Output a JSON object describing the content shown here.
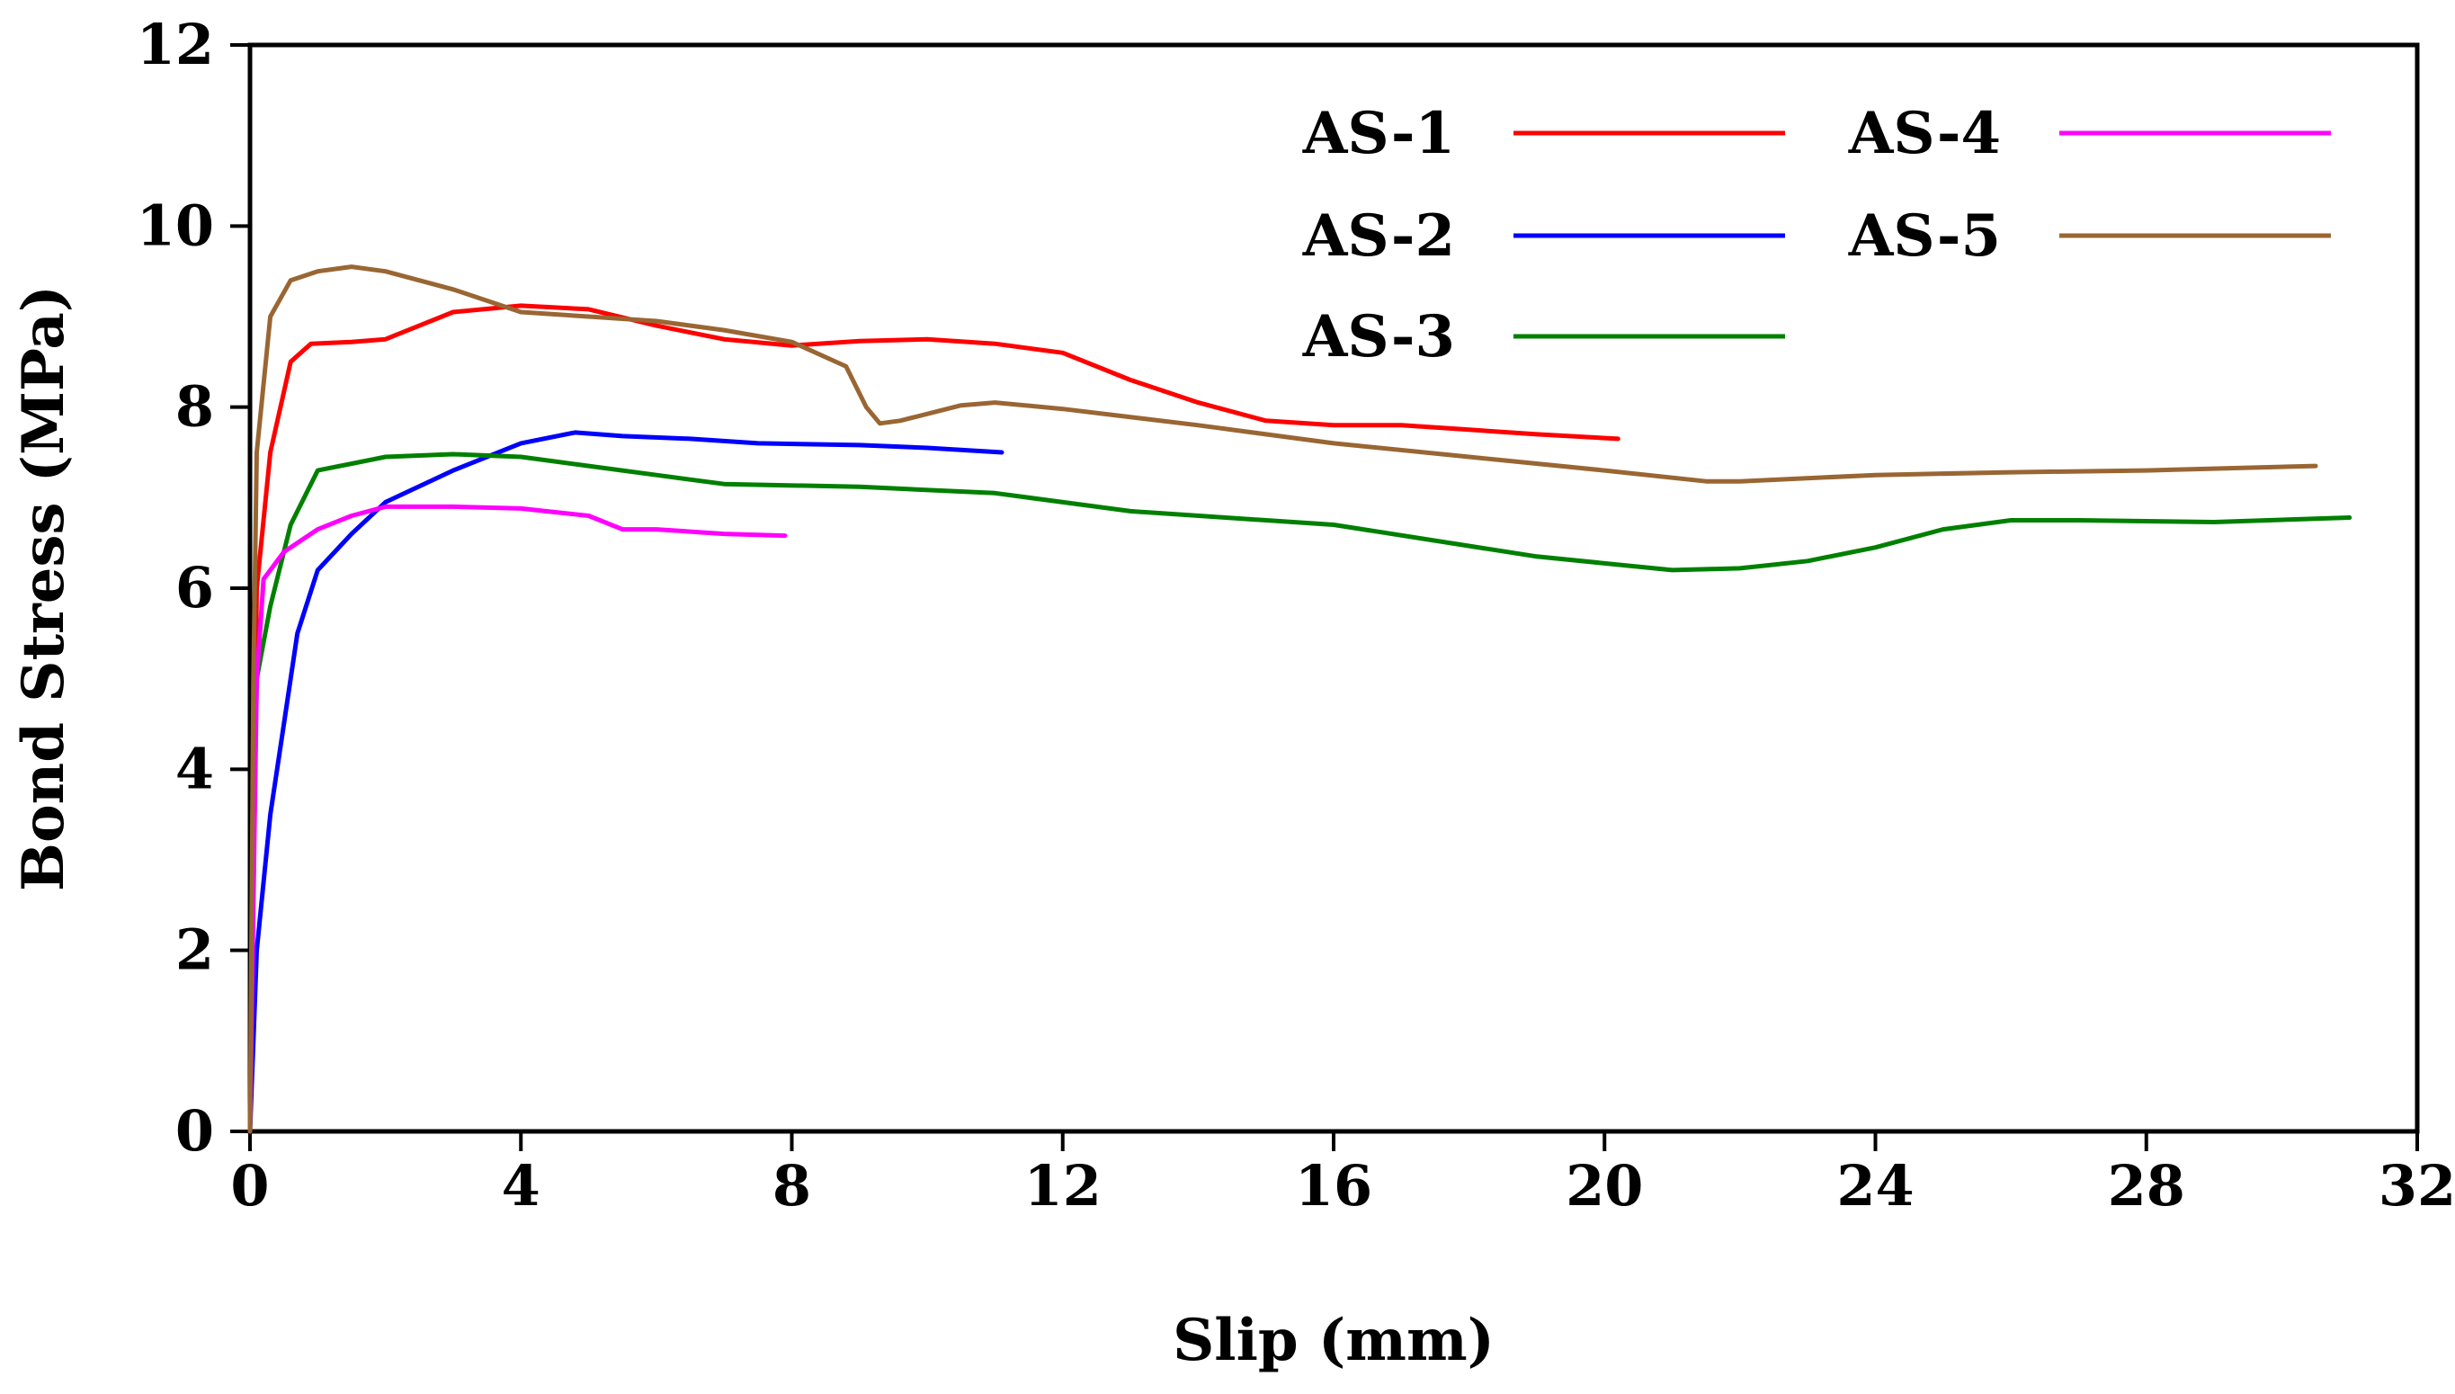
{
  "chart_data": {
    "type": "line",
    "title": "",
    "xlabel": "Slip (mm)",
    "ylabel": "Bond Stress (MPa)",
    "xlim": [
      0,
      32
    ],
    "ylim": [
      0,
      12
    ],
    "xticks": [
      0,
      4,
      8,
      12,
      16,
      20,
      24,
      28,
      32
    ],
    "yticks": [
      0,
      2,
      4,
      6,
      8,
      10,
      12
    ],
    "grid": false,
    "legend_position": "top-right",
    "series": [
      {
        "name": "AS-1",
        "color": "#ff0000",
        "points": [
          [
            0,
            0
          ],
          [
            0.05,
            3.0
          ],
          [
            0.1,
            6.0
          ],
          [
            0.3,
            7.5
          ],
          [
            0.6,
            8.5
          ],
          [
            0.9,
            8.7
          ],
          [
            1.5,
            8.72
          ],
          [
            2,
            8.75
          ],
          [
            2.5,
            8.9
          ],
          [
            3,
            9.05
          ],
          [
            4,
            9.12
          ],
          [
            5,
            9.08
          ],
          [
            6,
            8.9
          ],
          [
            7,
            8.75
          ],
          [
            8,
            8.68
          ],
          [
            9,
            8.73
          ],
          [
            10,
            8.75
          ],
          [
            11,
            8.7
          ],
          [
            12,
            8.6
          ],
          [
            13,
            8.3
          ],
          [
            14,
            8.05
          ],
          [
            15,
            7.85
          ],
          [
            16,
            7.8
          ],
          [
            17,
            7.8
          ],
          [
            18,
            7.75
          ],
          [
            19,
            7.7
          ],
          [
            20.2,
            7.65
          ]
        ]
      },
      {
        "name": "AS-2",
        "color": "#0000ff",
        "points": [
          [
            0,
            0
          ],
          [
            0.05,
            1.0
          ],
          [
            0.1,
            2.0
          ],
          [
            0.3,
            3.5
          ],
          [
            0.5,
            4.5
          ],
          [
            0.7,
            5.5
          ],
          [
            1,
            6.2
          ],
          [
            1.5,
            6.6
          ],
          [
            2,
            6.95
          ],
          [
            3,
            7.3
          ],
          [
            4,
            7.6
          ],
          [
            4.8,
            7.72
          ],
          [
            5.5,
            7.68
          ],
          [
            6.5,
            7.65
          ],
          [
            7.5,
            7.6
          ],
          [
            9,
            7.58
          ],
          [
            10,
            7.55
          ],
          [
            11.1,
            7.5
          ]
        ]
      },
      {
        "name": "AS-3",
        "color": "#008000",
        "points": [
          [
            0,
            0
          ],
          [
            0.05,
            3.0
          ],
          [
            0.1,
            5.0
          ],
          [
            0.3,
            5.8
          ],
          [
            0.6,
            6.7
          ],
          [
            1,
            7.3
          ],
          [
            2,
            7.45
          ],
          [
            3,
            7.48
          ],
          [
            4,
            7.45
          ],
          [
            5,
            7.35
          ],
          [
            6,
            7.25
          ],
          [
            7,
            7.15
          ],
          [
            9,
            7.12
          ],
          [
            11,
            7.05
          ],
          [
            13,
            6.85
          ],
          [
            16,
            6.7
          ],
          [
            19,
            6.35
          ],
          [
            21,
            6.2
          ],
          [
            22,
            6.22
          ],
          [
            23,
            6.3
          ],
          [
            24,
            6.45
          ],
          [
            25,
            6.65
          ],
          [
            26,
            6.75
          ],
          [
            27,
            6.75
          ],
          [
            29,
            6.73
          ],
          [
            31,
            6.78
          ]
        ]
      },
      {
        "name": "AS-4",
        "color": "#ff00ff",
        "points": [
          [
            0,
            0
          ],
          [
            0.05,
            2.5
          ],
          [
            0.1,
            5.0
          ],
          [
            0.2,
            6.1
          ],
          [
            0.5,
            6.4
          ],
          [
            1,
            6.65
          ],
          [
            1.5,
            6.8
          ],
          [
            2,
            6.9
          ],
          [
            3,
            6.9
          ],
          [
            4,
            6.88
          ],
          [
            5,
            6.8
          ],
          [
            5.5,
            6.65
          ],
          [
            6,
            6.65
          ],
          [
            7,
            6.6
          ],
          [
            7.9,
            6.58
          ]
        ]
      },
      {
        "name": "AS-5",
        "color": "#996633",
        "points": [
          [
            0,
            0
          ],
          [
            0.05,
            5.0
          ],
          [
            0.1,
            7.5
          ],
          [
            0.3,
            9.0
          ],
          [
            0.6,
            9.4
          ],
          [
            1,
            9.5
          ],
          [
            1.5,
            9.55
          ],
          [
            2,
            9.5
          ],
          [
            3,
            9.3
          ],
          [
            4,
            9.05
          ],
          [
            5,
            9.0
          ],
          [
            6,
            8.95
          ],
          [
            7,
            8.85
          ],
          [
            8,
            8.72
          ],
          [
            8.8,
            8.45
          ],
          [
            9.1,
            8.0
          ],
          [
            9.3,
            7.82
          ],
          [
            9.6,
            7.85
          ],
          [
            10.5,
            8.02
          ],
          [
            11,
            8.05
          ],
          [
            12,
            7.98
          ],
          [
            14,
            7.8
          ],
          [
            16,
            7.6
          ],
          [
            18,
            7.45
          ],
          [
            20,
            7.3
          ],
          [
            21.5,
            7.18
          ],
          [
            22,
            7.18
          ],
          [
            24,
            7.25
          ],
          [
            26,
            7.28
          ],
          [
            28,
            7.3
          ],
          [
            30.5,
            7.35
          ]
        ]
      }
    ]
  }
}
